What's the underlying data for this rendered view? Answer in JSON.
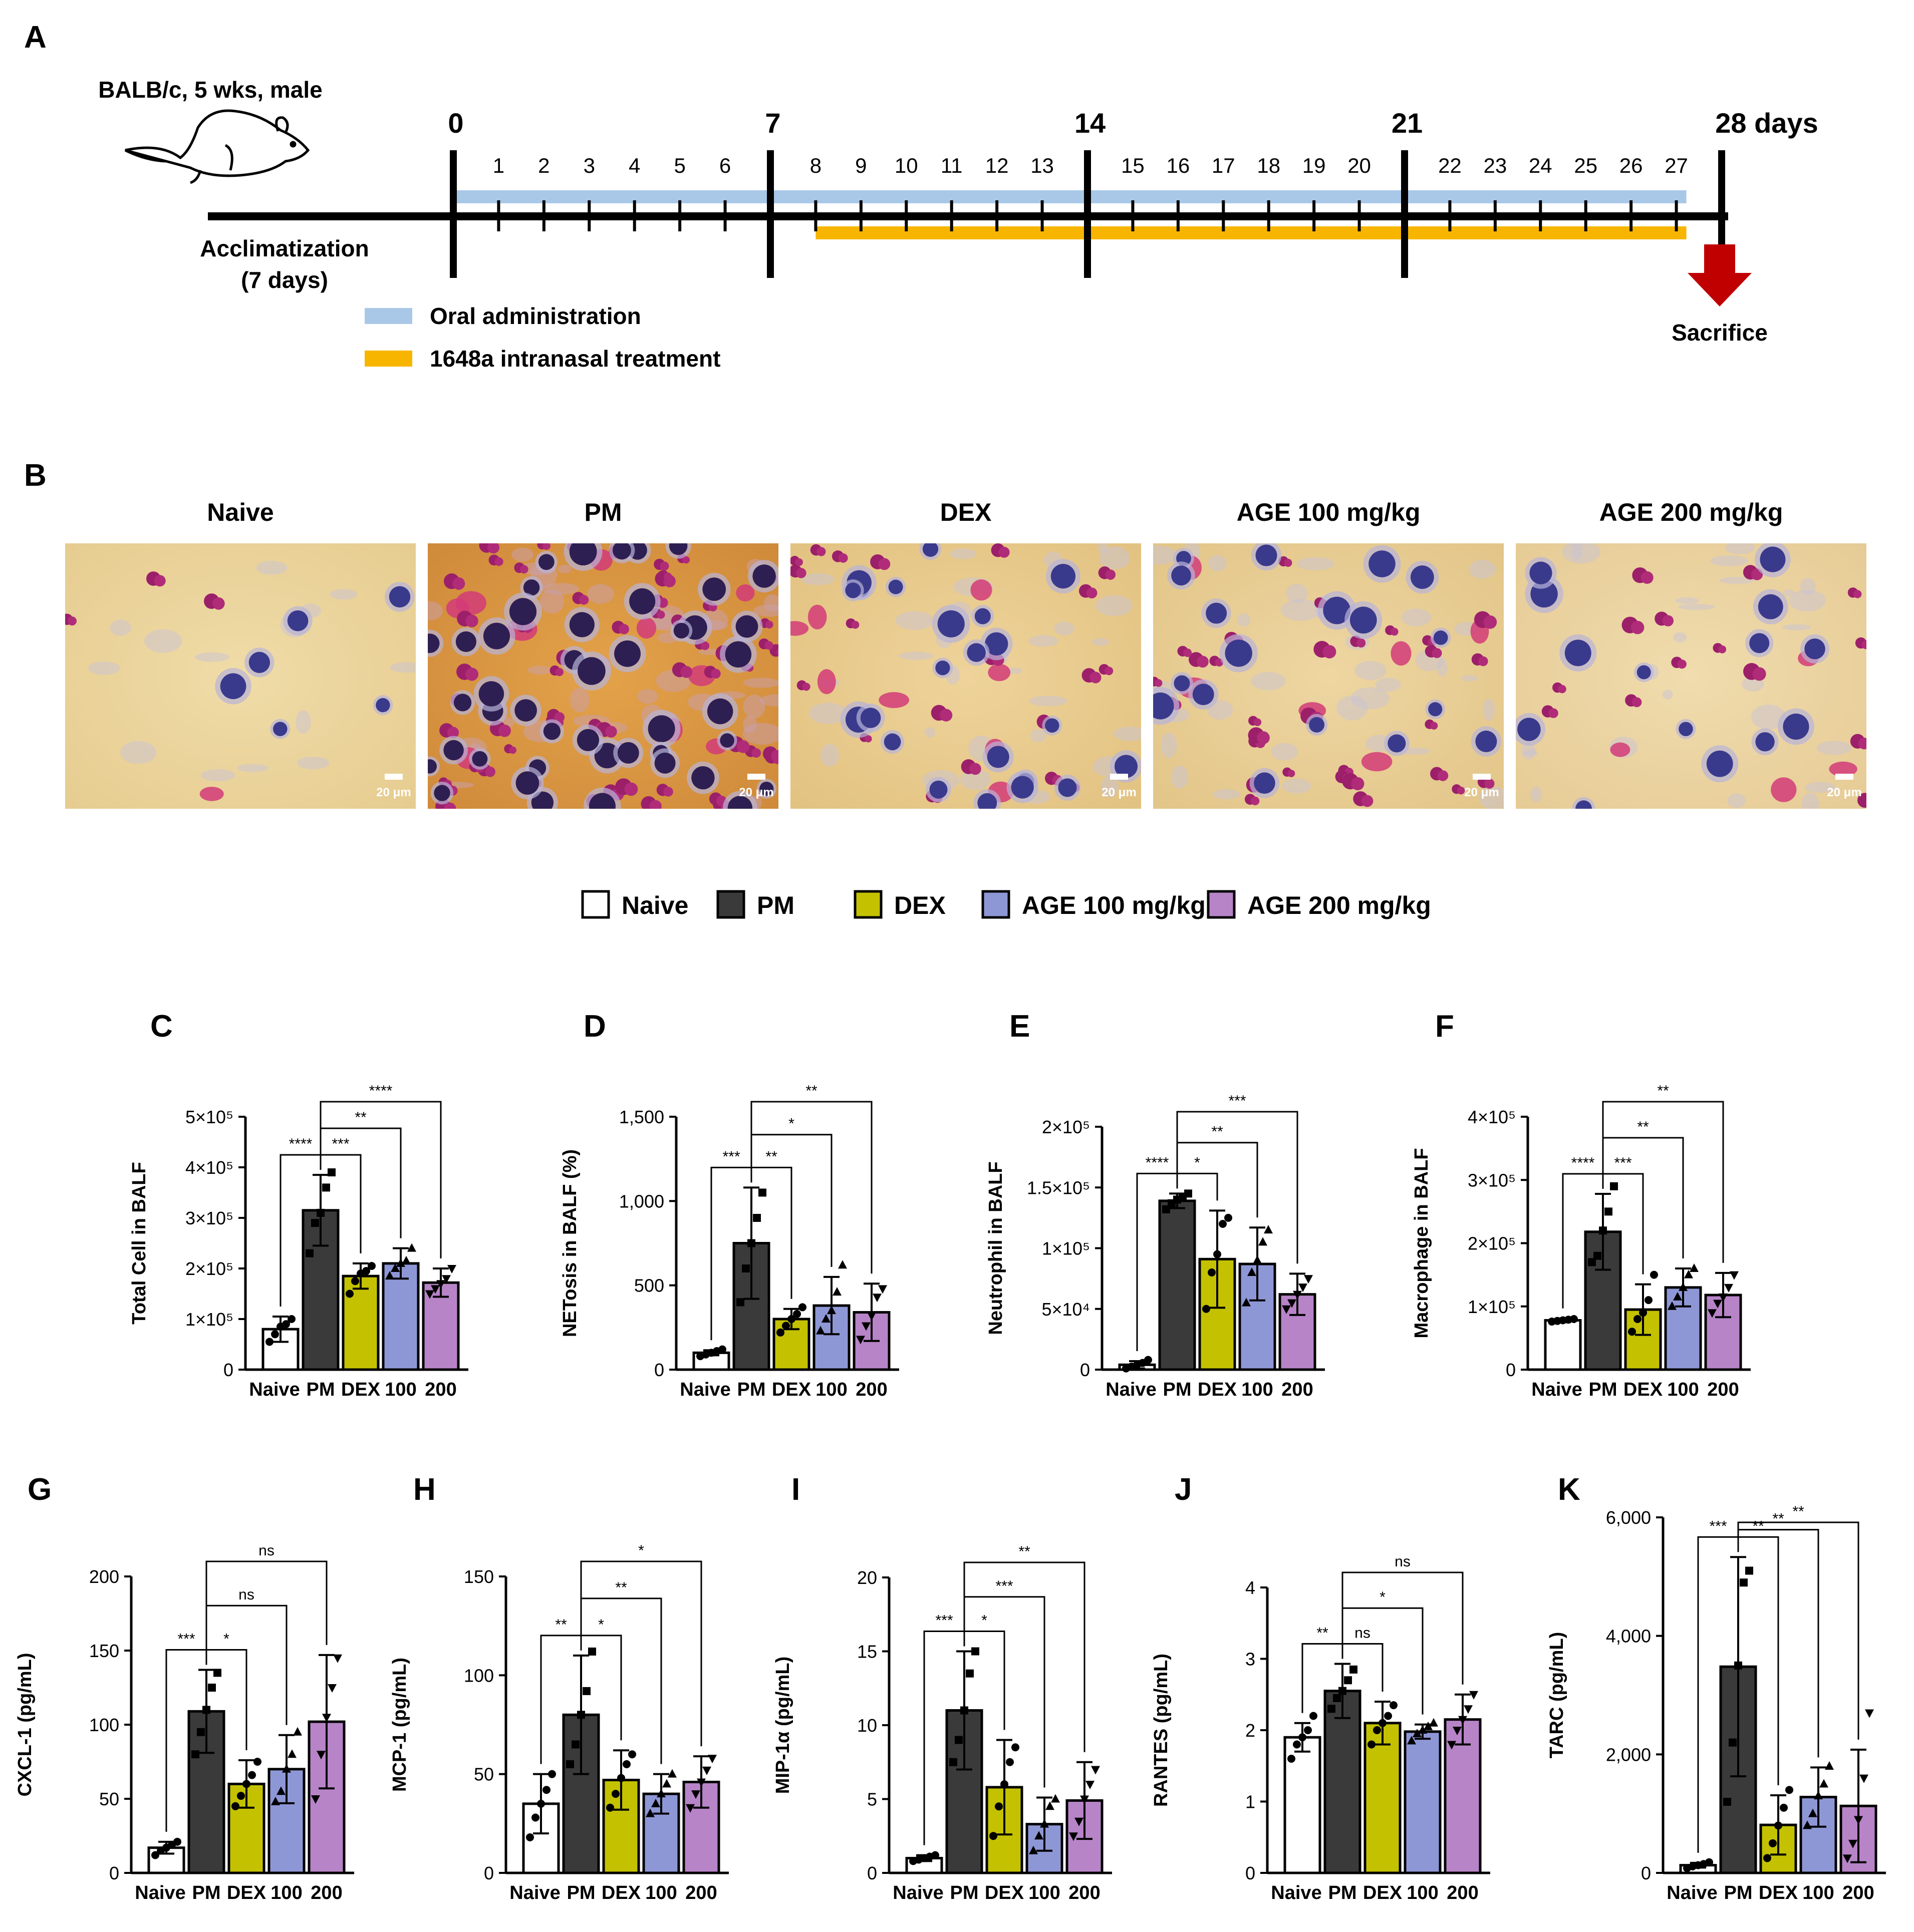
{
  "figure": {
    "panel_a": {
      "letter": "A",
      "animal_label": "BALB/c, 5 wks, male",
      "acclimatization_label": "Acclimatization",
      "acclimatization_days": "(7 days)",
      "major_days": [
        "0",
        "7",
        "14",
        "21",
        "28 days"
      ],
      "minor_days": [
        "1",
        "2",
        "3",
        "4",
        "5",
        "6",
        "8",
        "9",
        "10",
        "11",
        "12",
        "13",
        "15",
        "16",
        "17",
        "18",
        "19",
        "20",
        "22",
        "23",
        "24",
        "25",
        "26",
        "27"
      ],
      "oral_start_day": 0,
      "oral_end_day": 27,
      "intranasal_start_day": 8,
      "intranasal_end_day": 27,
      "legend_oral": "Oral administration",
      "legend_intranasal": "1648a intranasal treatment",
      "sacrifice_label": "Sacrifice",
      "colors": {
        "oral": "#a9c8e8",
        "intranasal": "#f7b500",
        "arrow": "#c00000"
      }
    },
    "panel_b": {
      "letter": "B",
      "images": [
        {
          "title": "Naive",
          "scale": "20 μm"
        },
        {
          "title": "PM",
          "scale": "20 μm"
        },
        {
          "title": "DEX",
          "scale": "20 μm"
        },
        {
          "title": "AGE 100 mg/kg",
          "scale": "20 μm"
        },
        {
          "title": "AGE 200 mg/kg",
          "scale": "20 μm"
        }
      ]
    },
    "legend": [
      {
        "name": "Naive",
        "color": "#ffffff"
      },
      {
        "name": "PM",
        "color": "#3a3a3a"
      },
      {
        "name": "DEX",
        "color": "#c4c200"
      },
      {
        "name": "AGE 100 mg/kg",
        "color": "#8e97d6"
      },
      {
        "name": "AGE 200 mg/kg",
        "color": "#b784c7"
      }
    ]
  },
  "chart_data": [
    {
      "letter": "C",
      "type": "bar",
      "ylabel": "Total Cell in BALF",
      "categories": [
        "Naive",
        "PM",
        "DEX",
        "100",
        "200"
      ],
      "values": [
        80000,
        315000,
        185000,
        210000,
        172000
      ],
      "errors": [
        25000,
        70000,
        25000,
        30000,
        28000
      ],
      "yticks": [
        "0",
        "1×10⁵",
        "2×10⁵",
        "3×10⁵",
        "4×10⁵",
        "5×10⁵"
      ],
      "ylim": [
        0,
        500000
      ],
      "points": [
        [
          55000,
          70000,
          85000,
          90000,
          100000
        ],
        [
          230000,
          290000,
          310000,
          360000,
          390000
        ],
        [
          150000,
          175000,
          190000,
          195000,
          205000
        ],
        [
          185000,
          200000,
          210000,
          215000,
          240000
        ],
        [
          150000,
          160000,
          170000,
          180000,
          200000
        ]
      ],
      "comparisons": [
        {
          "a": 0,
          "b": 1,
          "label": "****"
        },
        {
          "a": 1,
          "b": 2,
          "label": "***"
        },
        {
          "a": 1,
          "b": 3,
          "label": "**"
        },
        {
          "a": 1,
          "b": 4,
          "label": "****"
        }
      ]
    },
    {
      "letter": "D",
      "type": "bar",
      "ylabel": "NETosis in BALF (%)",
      "categories": [
        "Naive",
        "PM",
        "DEX",
        "100",
        "200"
      ],
      "values": [
        100,
        750,
        300,
        380,
        340
      ],
      "errors": [
        15,
        330,
        60,
        170,
        170
      ],
      "yticks": [
        "0",
        "500",
        "1,000",
        "1,500"
      ],
      "ylim": [
        0,
        1500
      ],
      "points": [
        [
          80,
          90,
          100,
          110,
          120
        ],
        [
          400,
          600,
          750,
          900,
          1050
        ],
        [
          220,
          260,
          300,
          330,
          370
        ],
        [
          230,
          300,
          350,
          460,
          620
        ],
        [
          180,
          260,
          320,
          430,
          480
        ]
      ],
      "comparisons": [
        {
          "a": 0,
          "b": 1,
          "label": "***"
        },
        {
          "a": 1,
          "b": 2,
          "label": "**"
        },
        {
          "a": 1,
          "b": 3,
          "label": "*"
        },
        {
          "a": 1,
          "b": 4,
          "label": "**"
        }
      ]
    },
    {
      "letter": "E",
      "type": "bar",
      "ylabel": "Neutrophil in BALF",
      "categories": [
        "Naive",
        "PM",
        "DEX",
        "100",
        "200"
      ],
      "values": [
        4000,
        139000,
        91000,
        87000,
        62000
      ],
      "errors": [
        3000,
        6000,
        40000,
        30000,
        17000
      ],
      "yticks": [
        "0",
        "5×10⁴",
        "1×10⁵",
        "1.5×10⁵",
        "2×10⁵"
      ],
      "ylim": [
        0,
        200000
      ],
      "points": [
        [
          1000,
          2500,
          4000,
          5500,
          8000
        ],
        [
          132000,
          137000,
          140000,
          142000,
          145000
        ],
        [
          50000,
          80000,
          95000,
          120000,
          125000
        ],
        [
          55000,
          80000,
          90000,
          105000,
          115000
        ],
        [
          50000,
          55000,
          62000,
          68000,
          75000
        ]
      ],
      "comparisons": [
        {
          "a": 0,
          "b": 1,
          "label": "****"
        },
        {
          "a": 1,
          "b": 2,
          "label": "*"
        },
        {
          "a": 1,
          "b": 3,
          "label": "**"
        },
        {
          "a": 1,
          "b": 4,
          "label": "***"
        }
      ]
    },
    {
      "letter": "F",
      "type": "bar",
      "ylabel": "Macrophage in BALF",
      "categories": [
        "Naive",
        "PM",
        "DEX",
        "100",
        "200"
      ],
      "values": [
        78000,
        218000,
        95000,
        130000,
        118000
      ],
      "errors": [
        3000,
        60000,
        40000,
        30000,
        35000
      ],
      "yticks": [
        "0",
        "1×10⁵",
        "2×10⁵",
        "3×10⁵",
        "4×10⁵"
      ],
      "ylim": [
        0,
        400000
      ],
      "points": [
        [
          76000,
          77000,
          78000,
          79000,
          80000
        ],
        [
          170000,
          180000,
          220000,
          250000,
          290000
        ],
        [
          60000,
          80000,
          90000,
          110000,
          150000
        ],
        [
          100000,
          115000,
          130000,
          150000,
          160000
        ],
        [
          90000,
          105000,
          115000,
          130000,
          150000
        ]
      ],
      "comparisons": [
        {
          "a": 0,
          "b": 1,
          "label": "****"
        },
        {
          "a": 1,
          "b": 2,
          "label": "***"
        },
        {
          "a": 1,
          "b": 3,
          "label": "**"
        },
        {
          "a": 1,
          "b": 4,
          "label": "**"
        }
      ]
    },
    {
      "letter": "G",
      "type": "bar",
      "ylabel": "CXCL-1 (pg/mL)",
      "categories": [
        "Naive",
        "PM",
        "DEX",
        "100",
        "200"
      ],
      "values": [
        17,
        109,
        60,
        70,
        102
      ],
      "errors": [
        4,
        28,
        16,
        23,
        45
      ],
      "yticks": [
        "0",
        "50",
        "100",
        "150",
        "200"
      ],
      "ylim": [
        0,
        200
      ],
      "points": [
        [
          12,
          15,
          17,
          19,
          21
        ],
        [
          80,
          95,
          110,
          125,
          135
        ],
        [
          45,
          52,
          60,
          66,
          75
        ],
        [
          48,
          55,
          70,
          80,
          95
        ],
        [
          50,
          80,
          105,
          125,
          145
        ]
      ],
      "comparisons": [
        {
          "a": 0,
          "b": 1,
          "label": "***"
        },
        {
          "a": 1,
          "b": 2,
          "label": "*"
        },
        {
          "a": 1,
          "b": 3,
          "label": "ns"
        },
        {
          "a": 1,
          "b": 4,
          "label": "ns"
        }
      ]
    },
    {
      "letter": "H",
      "type": "bar",
      "ylabel": "MCP-1 (pg/mL)",
      "categories": [
        "Naive",
        "PM",
        "DEX",
        "100",
        "200"
      ],
      "values": [
        35,
        80,
        47,
        40,
        46
      ],
      "errors": [
        15,
        30,
        15,
        10,
        13
      ],
      "yticks": [
        "0",
        "50",
        "100",
        "150"
      ],
      "ylim": [
        0,
        150
      ],
      "points": [
        [
          18,
          28,
          35,
          42,
          50
        ],
        [
          55,
          65,
          80,
          92,
          112
        ],
        [
          33,
          40,
          48,
          55,
          60
        ],
        [
          30,
          35,
          40,
          45,
          50
        ],
        [
          33,
          40,
          46,
          52,
          58
        ]
      ],
      "comparisons": [
        {
          "a": 0,
          "b": 1,
          "label": "**"
        },
        {
          "a": 1,
          "b": 2,
          "label": "*"
        },
        {
          "a": 1,
          "b": 3,
          "label": "**"
        },
        {
          "a": 1,
          "b": 4,
          "label": "*"
        }
      ]
    },
    {
      "letter": "I",
      "type": "bar",
      "ylabel": "MIP-1α (pg/mL)",
      "categories": [
        "Naive",
        "PM",
        "DEX",
        "100",
        "200"
      ],
      "values": [
        1,
        11,
        5.8,
        3.3,
        4.9
      ],
      "errors": [
        0.2,
        4,
        3.2,
        1.8,
        2.6
      ],
      "yticks": [
        "0",
        "5",
        "10",
        "15",
        "20"
      ],
      "ylim": [
        0,
        20
      ],
      "points": [
        [
          0.8,
          0.9,
          1.0,
          1.1,
          1.2
        ],
        [
          7.5,
          9,
          11,
          13.5,
          15
        ],
        [
          2.5,
          4.5,
          6,
          7.5,
          8.5
        ],
        [
          1.5,
          2.5,
          3.3,
          4.5,
          5
        ],
        [
          2.5,
          3.5,
          5,
          6,
          7
        ]
      ],
      "comparisons": [
        {
          "a": 0,
          "b": 1,
          "label": "***"
        },
        {
          "a": 1,
          "b": 2,
          "label": "*"
        },
        {
          "a": 1,
          "b": 3,
          "label": "***"
        },
        {
          "a": 1,
          "b": 4,
          "label": "**"
        }
      ]
    },
    {
      "letter": "J",
      "type": "bar",
      "ylabel": "RANTES (pg/mL)",
      "categories": [
        "Naive",
        "PM",
        "DEX",
        "100",
        "200"
      ],
      "values": [
        1.9,
        2.55,
        2.1,
        1.98,
        2.15
      ],
      "errors": [
        0.2,
        0.38,
        0.3,
        0.1,
        0.35
      ],
      "yticks": [
        "0",
        "1",
        "2",
        "3",
        "4"
      ],
      "ylim": [
        0,
        4
      ],
      "points": [
        [
          1.6,
          1.8,
          1.9,
          2.0,
          2.2
        ],
        [
          2.3,
          2.45,
          2.55,
          2.7,
          2.85
        ],
        [
          1.8,
          2.0,
          2.1,
          2.2,
          2.35
        ],
        [
          1.85,
          1.95,
          2.0,
          2.05,
          2.1
        ],
        [
          1.8,
          2.0,
          2.15,
          2.3,
          2.5
        ]
      ],
      "comparisons": [
        {
          "a": 0,
          "b": 1,
          "label": "**"
        },
        {
          "a": 1,
          "b": 2,
          "label": "ns"
        },
        {
          "a": 1,
          "b": 3,
          "label": "*"
        },
        {
          "a": 1,
          "b": 4,
          "label": "ns"
        }
      ]
    },
    {
      "letter": "K",
      "type": "bar",
      "ylabel": "TARC (pg/mL)",
      "categories": [
        "Naive",
        "PM",
        "DEX",
        "100",
        "200"
      ],
      "values": [
        130,
        3480,
        810,
        1280,
        1130
      ],
      "errors": [
        40,
        1850,
        500,
        500,
        950
      ],
      "yticks": [
        "0",
        "2,000",
        "4,000",
        "6,000"
      ],
      "ylim": [
        0,
        6000
      ],
      "points": [
        [
          80,
          110,
          130,
          150,
          180
        ],
        [
          1200,
          2200,
          3500,
          4900,
          5100
        ],
        [
          250,
          500,
          800,
          1100,
          1400
        ],
        [
          800,
          1000,
          1300,
          1500,
          1800
        ],
        [
          250,
          500,
          900,
          1600,
          2700
        ]
      ],
      "comparisons": [
        {
          "a": 0,
          "b": 1,
          "label": "***"
        },
        {
          "a": 1,
          "b": 2,
          "label": "**"
        },
        {
          "a": 1,
          "b": 3,
          "label": "**"
        },
        {
          "a": 1,
          "b": 4,
          "label": "**"
        }
      ]
    }
  ]
}
